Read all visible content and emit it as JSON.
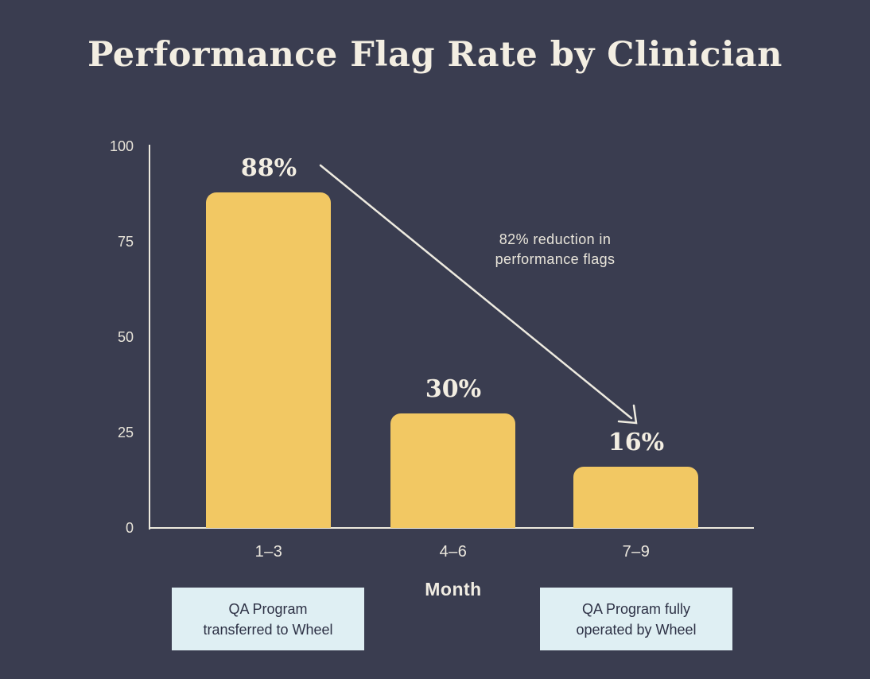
{
  "title": "Performance Flag Rate by Clinician",
  "chart_data": {
    "type": "bar",
    "title": "Performance Flag Rate by Clinician",
    "categories": [
      "1–3",
      "4–6",
      "7–9"
    ],
    "values": [
      88,
      30,
      16
    ],
    "value_labels": [
      "88%",
      "30%",
      "16%"
    ],
    "xlabel": "Month",
    "ylabel": "",
    "yticks": [
      "100",
      "75",
      "50",
      "25",
      "0"
    ],
    "ylim": [
      0,
      100
    ],
    "grid": false,
    "legend": "none",
    "bar_color": "#f2c863",
    "background_color": "#3a3d50",
    "annotation": {
      "text": "82% reduction in performance flags",
      "arrow": "diagonal from 88% bar label down-right to 16% bar label"
    }
  },
  "annotation": {
    "line1": "82% reduction in",
    "line2": "performance flags"
  },
  "callouts": {
    "left": {
      "line1": "QA Program",
      "line2": "transferred to Wheel"
    },
    "right": {
      "line1": "QA Program fully",
      "line2": "operated by Wheel"
    }
  },
  "colors": {
    "background": "#3a3d50",
    "bar": "#f2c863",
    "text_cream": "#f3eee2",
    "axis": "#edeade",
    "callout_background": "#dfeff3",
    "callout_text": "#2d3145"
  }
}
